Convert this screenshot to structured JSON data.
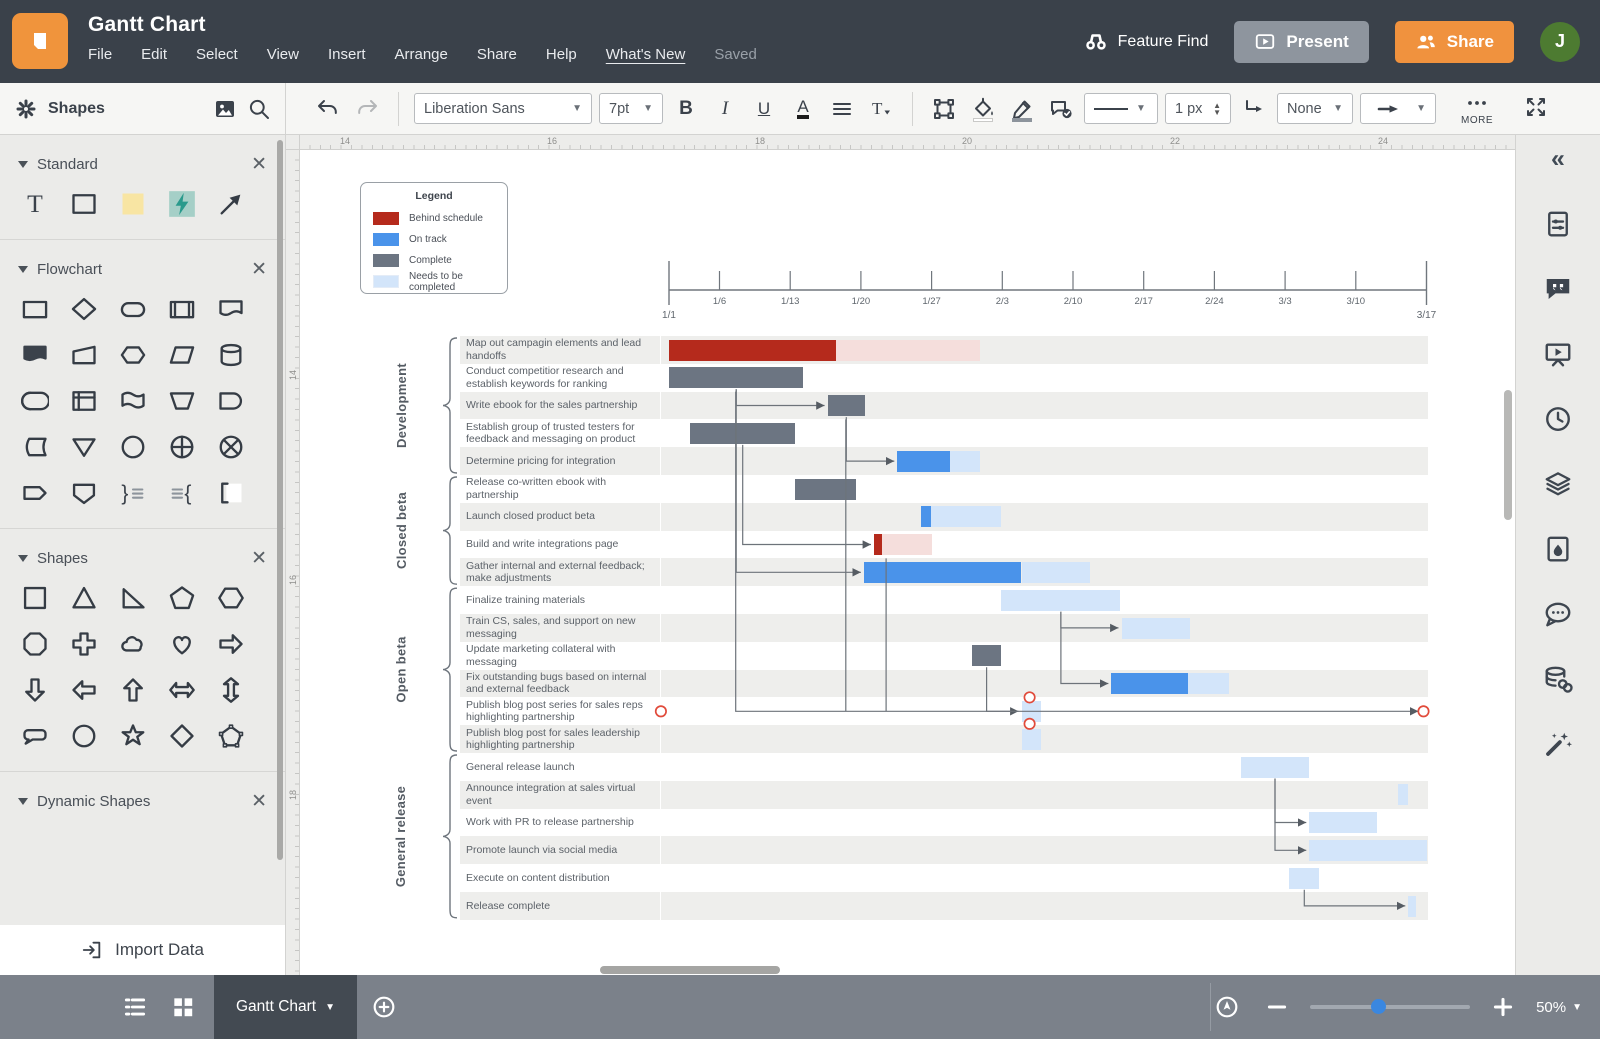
{
  "topbar": {
    "title": "Gantt Chart",
    "menu_items": [
      "File",
      "Edit",
      "Select",
      "View",
      "Insert",
      "Arrange",
      "Share",
      "Help",
      "What's New",
      "Saved"
    ],
    "feature_find_label": "Feature Find",
    "present_label": "Present",
    "share_label": "Share",
    "avatar_initial": "J",
    "colors": {
      "header_bg": "#3a414a",
      "accent_orange": "#f0923e",
      "present_gray": "#8e959e",
      "avatar_green": "#4d7b31"
    }
  },
  "toolbar": {
    "shapes_label": "Shapes",
    "font_name": "Liberation Sans",
    "font_size": "7pt",
    "stroke_width": "1 px",
    "line_end_none": "None",
    "more_label": "MORE",
    "icons": [
      "image-icon",
      "search-icon",
      "undo-icon",
      "redo-icon",
      "bold",
      "italic",
      "underline",
      "font-color",
      "align-icon",
      "text-style-icon",
      "frame-icon",
      "fill-bucket-icon",
      "line-color-pencil-icon",
      "comment-check-icon",
      "line-style",
      "elbow-connector-icon",
      "arrow-end-icon",
      "more-dots-icon",
      "fullscreen-icon"
    ]
  },
  "left_panel": {
    "sections": [
      {
        "name": "Standard",
        "shapes": [
          "text",
          "rectangle",
          "sticky-note",
          "lightning",
          "arrow-ne"
        ]
      },
      {
        "name": "Flowchart",
        "shapes": [
          "process",
          "decision",
          "terminator",
          "subroutine",
          "display",
          "document",
          "card",
          "preparation",
          "data",
          "database",
          "direct-storage",
          "internal-storage",
          "flag",
          "manual-operation",
          "delay",
          "stored-data",
          "extract",
          "connector",
          "or-junction",
          "summing-junction",
          "tagged-process",
          "off-page",
          "brace-right",
          "brace-left",
          "text-bracket"
        ]
      },
      {
        "name": "Shapes",
        "shapes": [
          "square",
          "triangle",
          "right-triangle",
          "pentagon",
          "hexagon",
          "octagon",
          "cross",
          "cloud",
          "heart",
          "block-arrow-right",
          "block-arrow-down",
          "block-arrow-left",
          "block-arrow-up",
          "block-arrow-lr",
          "block-arrow-ud",
          "callout",
          "circle",
          "star",
          "diamond",
          "pentagon-nodes"
        ]
      },
      {
        "name": "Dynamic Shapes",
        "shapes": []
      }
    ],
    "import_label": "Import Data"
  },
  "rulers": {
    "horizontal": [
      "14",
      "16",
      "18",
      "20",
      "22",
      "24"
    ],
    "vertical": [
      "14",
      "16",
      "18"
    ]
  },
  "legend": {
    "title": "Legend",
    "items": [
      {
        "label": "Behind schedule",
        "color": "#b52a1c"
      },
      {
        "label": "On track",
        "color": "#4a93ea"
      },
      {
        "label": "Complete",
        "color": "#6c7582"
      },
      {
        "label": "Needs to be completed",
        "color": "#d3e5fa"
      }
    ]
  },
  "chart_data": {
    "type": "gantt",
    "timeline": {
      "ticks": [
        {
          "day": 0,
          "label": "1/1",
          "major": true
        },
        {
          "day": 5,
          "label": "1/6"
        },
        {
          "day": 12,
          "label": "1/13"
        },
        {
          "day": 19,
          "label": "1/20"
        },
        {
          "day": 26,
          "label": "1/27"
        },
        {
          "day": 33,
          "label": "2/3"
        },
        {
          "day": 40,
          "label": "2/10"
        },
        {
          "day": 47,
          "label": "2/17"
        },
        {
          "day": 54,
          "label": "2/24"
        },
        {
          "day": 61,
          "label": "3/3"
        },
        {
          "day": 68,
          "label": "3/10"
        },
        {
          "day": 75,
          "label": "3/17",
          "major": true
        }
      ]
    },
    "status_colors": {
      "behind": "#b52a1c",
      "behind_projected": "#f5dedc",
      "ontrack": "#4a93ea",
      "complete": "#6c7582",
      "needs": "#d3e5fa"
    },
    "groups": [
      {
        "name": "Development",
        "task_range": [
          0,
          4
        ]
      },
      {
        "name": "Closed beta",
        "task_range": [
          5,
          8
        ]
      },
      {
        "name": "Open beta",
        "task_range": [
          9,
          14
        ]
      },
      {
        "name": "General release",
        "task_range": [
          15,
          20
        ]
      }
    ],
    "tasks": [
      {
        "label": "Map out campagin elements and lead handoffs",
        "bars": [
          {
            "status": "behind",
            "start": 0,
            "end": 16.5
          },
          {
            "status": "behind_projected",
            "start": 16.5,
            "end": 30.8
          }
        ]
      },
      {
        "label": "Conduct competitior research and establish keywords for ranking",
        "bars": [
          {
            "status": "complete",
            "start": 0,
            "end": 13.3
          }
        ]
      },
      {
        "label": "Write ebook for the sales partnership",
        "bars": [
          {
            "status": "complete",
            "start": 15.7,
            "end": 19.4
          }
        ]
      },
      {
        "label": "Establish group of trusted testers for feedback and messaging on product",
        "bars": [
          {
            "status": "complete",
            "start": 2.1,
            "end": 12.5
          }
        ]
      },
      {
        "label": "Determine pricing for integration",
        "bars": [
          {
            "status": "ontrack",
            "start": 22.6,
            "end": 27.8
          },
          {
            "status": "needs",
            "start": 27.8,
            "end": 30.8
          }
        ]
      },
      {
        "label": "Release co-written ebook with partnership",
        "bars": [
          {
            "status": "complete",
            "start": 12.5,
            "end": 18.5
          }
        ]
      },
      {
        "label": "Launch closed product beta",
        "bars": [
          {
            "status": "ontrack",
            "start": 24.9,
            "end": 25.9
          },
          {
            "status": "needs",
            "start": 25.9,
            "end": 32.9
          }
        ]
      },
      {
        "label": "Build and write integrations page",
        "bars": [
          {
            "status": "behind",
            "start": 20.3,
            "end": 21.1
          },
          {
            "status": "behind_projected",
            "start": 21.1,
            "end": 26
          }
        ]
      },
      {
        "label": "Gather internal and external feedback; make adjustments",
        "bars": [
          {
            "status": "ontrack",
            "start": 19.3,
            "end": 34.9
          },
          {
            "status": "needs",
            "start": 34.9,
            "end": 41.7
          }
        ]
      },
      {
        "label": "Finalize training materials",
        "bars": [
          {
            "status": "needs",
            "start": 32.9,
            "end": 44.7
          }
        ]
      },
      {
        "label": "Train CS, sales, and support on new messaging",
        "bars": [
          {
            "status": "needs",
            "start": 44.8,
            "end": 51.6
          }
        ]
      },
      {
        "label": "Update marketing collateral with messaging",
        "bars": [
          {
            "status": "complete",
            "start": 30,
            "end": 32.9
          }
        ]
      },
      {
        "label": "Fix outstanding bugs based on internal and external feedback",
        "bars": [
          {
            "status": "ontrack",
            "start": 43.8,
            "end": 51.4
          },
          {
            "status": "needs",
            "start": 51.4,
            "end": 55.5
          }
        ]
      },
      {
        "label": "Publish blog post series for sales reps highlighting partnership",
        "bars": [
          {
            "status": "needs",
            "start": 34.9,
            "end": 36.8
          }
        ]
      },
      {
        "label": "Publish blog post for sales leadership highlighting partnership",
        "bars": [
          {
            "status": "needs",
            "start": 34.9,
            "end": 36.8
          }
        ]
      },
      {
        "label": "General release launch",
        "bars": [
          {
            "status": "needs",
            "start": 56.6,
            "end": 63.4
          }
        ]
      },
      {
        "label": "Announce integration at sales virtual event",
        "bars": [
          {
            "status": "needs",
            "start": 72.2,
            "end": 73.2
          }
        ]
      },
      {
        "label": "Work with PR to release partnership",
        "bars": [
          {
            "status": "needs",
            "start": 63.4,
            "end": 70.1
          }
        ]
      },
      {
        "label": "Promote launch via social media",
        "bars": [
          {
            "status": "needs",
            "start": 63.4,
            "end": 75.1
          }
        ]
      },
      {
        "label": "Execute on content distribution",
        "bars": [
          {
            "status": "needs",
            "start": 61.4,
            "end": 64.4
          }
        ]
      },
      {
        "label": "Release complete",
        "bars": [
          {
            "status": "needs",
            "start": 73.2,
            "end": 74
          }
        ]
      }
    ],
    "connectors": [
      [
        1,
        2
      ],
      [
        2,
        4
      ],
      [
        3,
        7
      ],
      [
        1,
        8
      ],
      [
        9,
        10
      ],
      [
        9,
        12
      ],
      [
        11,
        13
      ],
      [
        15,
        17
      ],
      [
        15,
        18
      ],
      [
        19,
        20
      ]
    ],
    "free_lines": [
      {
        "points": [
          [
            6.6,
            2
          ],
          [
            6.6,
            13.5
          ],
          [
            74.2,
            13.5
          ]
        ],
        "arrow": true
      },
      {
        "points": [
          [
            17.5,
            3
          ],
          [
            17.5,
            13.5
          ]
        ],
        "arrow": false
      },
      {
        "points": [
          [
            21.5,
            8
          ],
          [
            21.5,
            13.5
          ]
        ],
        "arrow": false
      }
    ],
    "endpoint_markers": [
      {
        "day": -0.8,
        "row": 13.5
      },
      {
        "day": 35.7,
        "row": 13
      },
      {
        "day": 35.7,
        "row": 13.95
      },
      {
        "day": 74.7,
        "row": 13.5
      }
    ]
  },
  "right_rail": {
    "icons": [
      "collapse",
      "doc-settings",
      "feedback",
      "slideshow",
      "history",
      "layers",
      "theme",
      "comments",
      "data-link",
      "magic-wand"
    ]
  },
  "bottombar": {
    "page_tab": "Gantt Chart",
    "zoom_level": "50%",
    "icons": [
      "list-view-icon",
      "grid-view-icon",
      "add-page-icon",
      "pan-icon",
      "zoom-out-icon",
      "zoom-in-icon"
    ]
  }
}
